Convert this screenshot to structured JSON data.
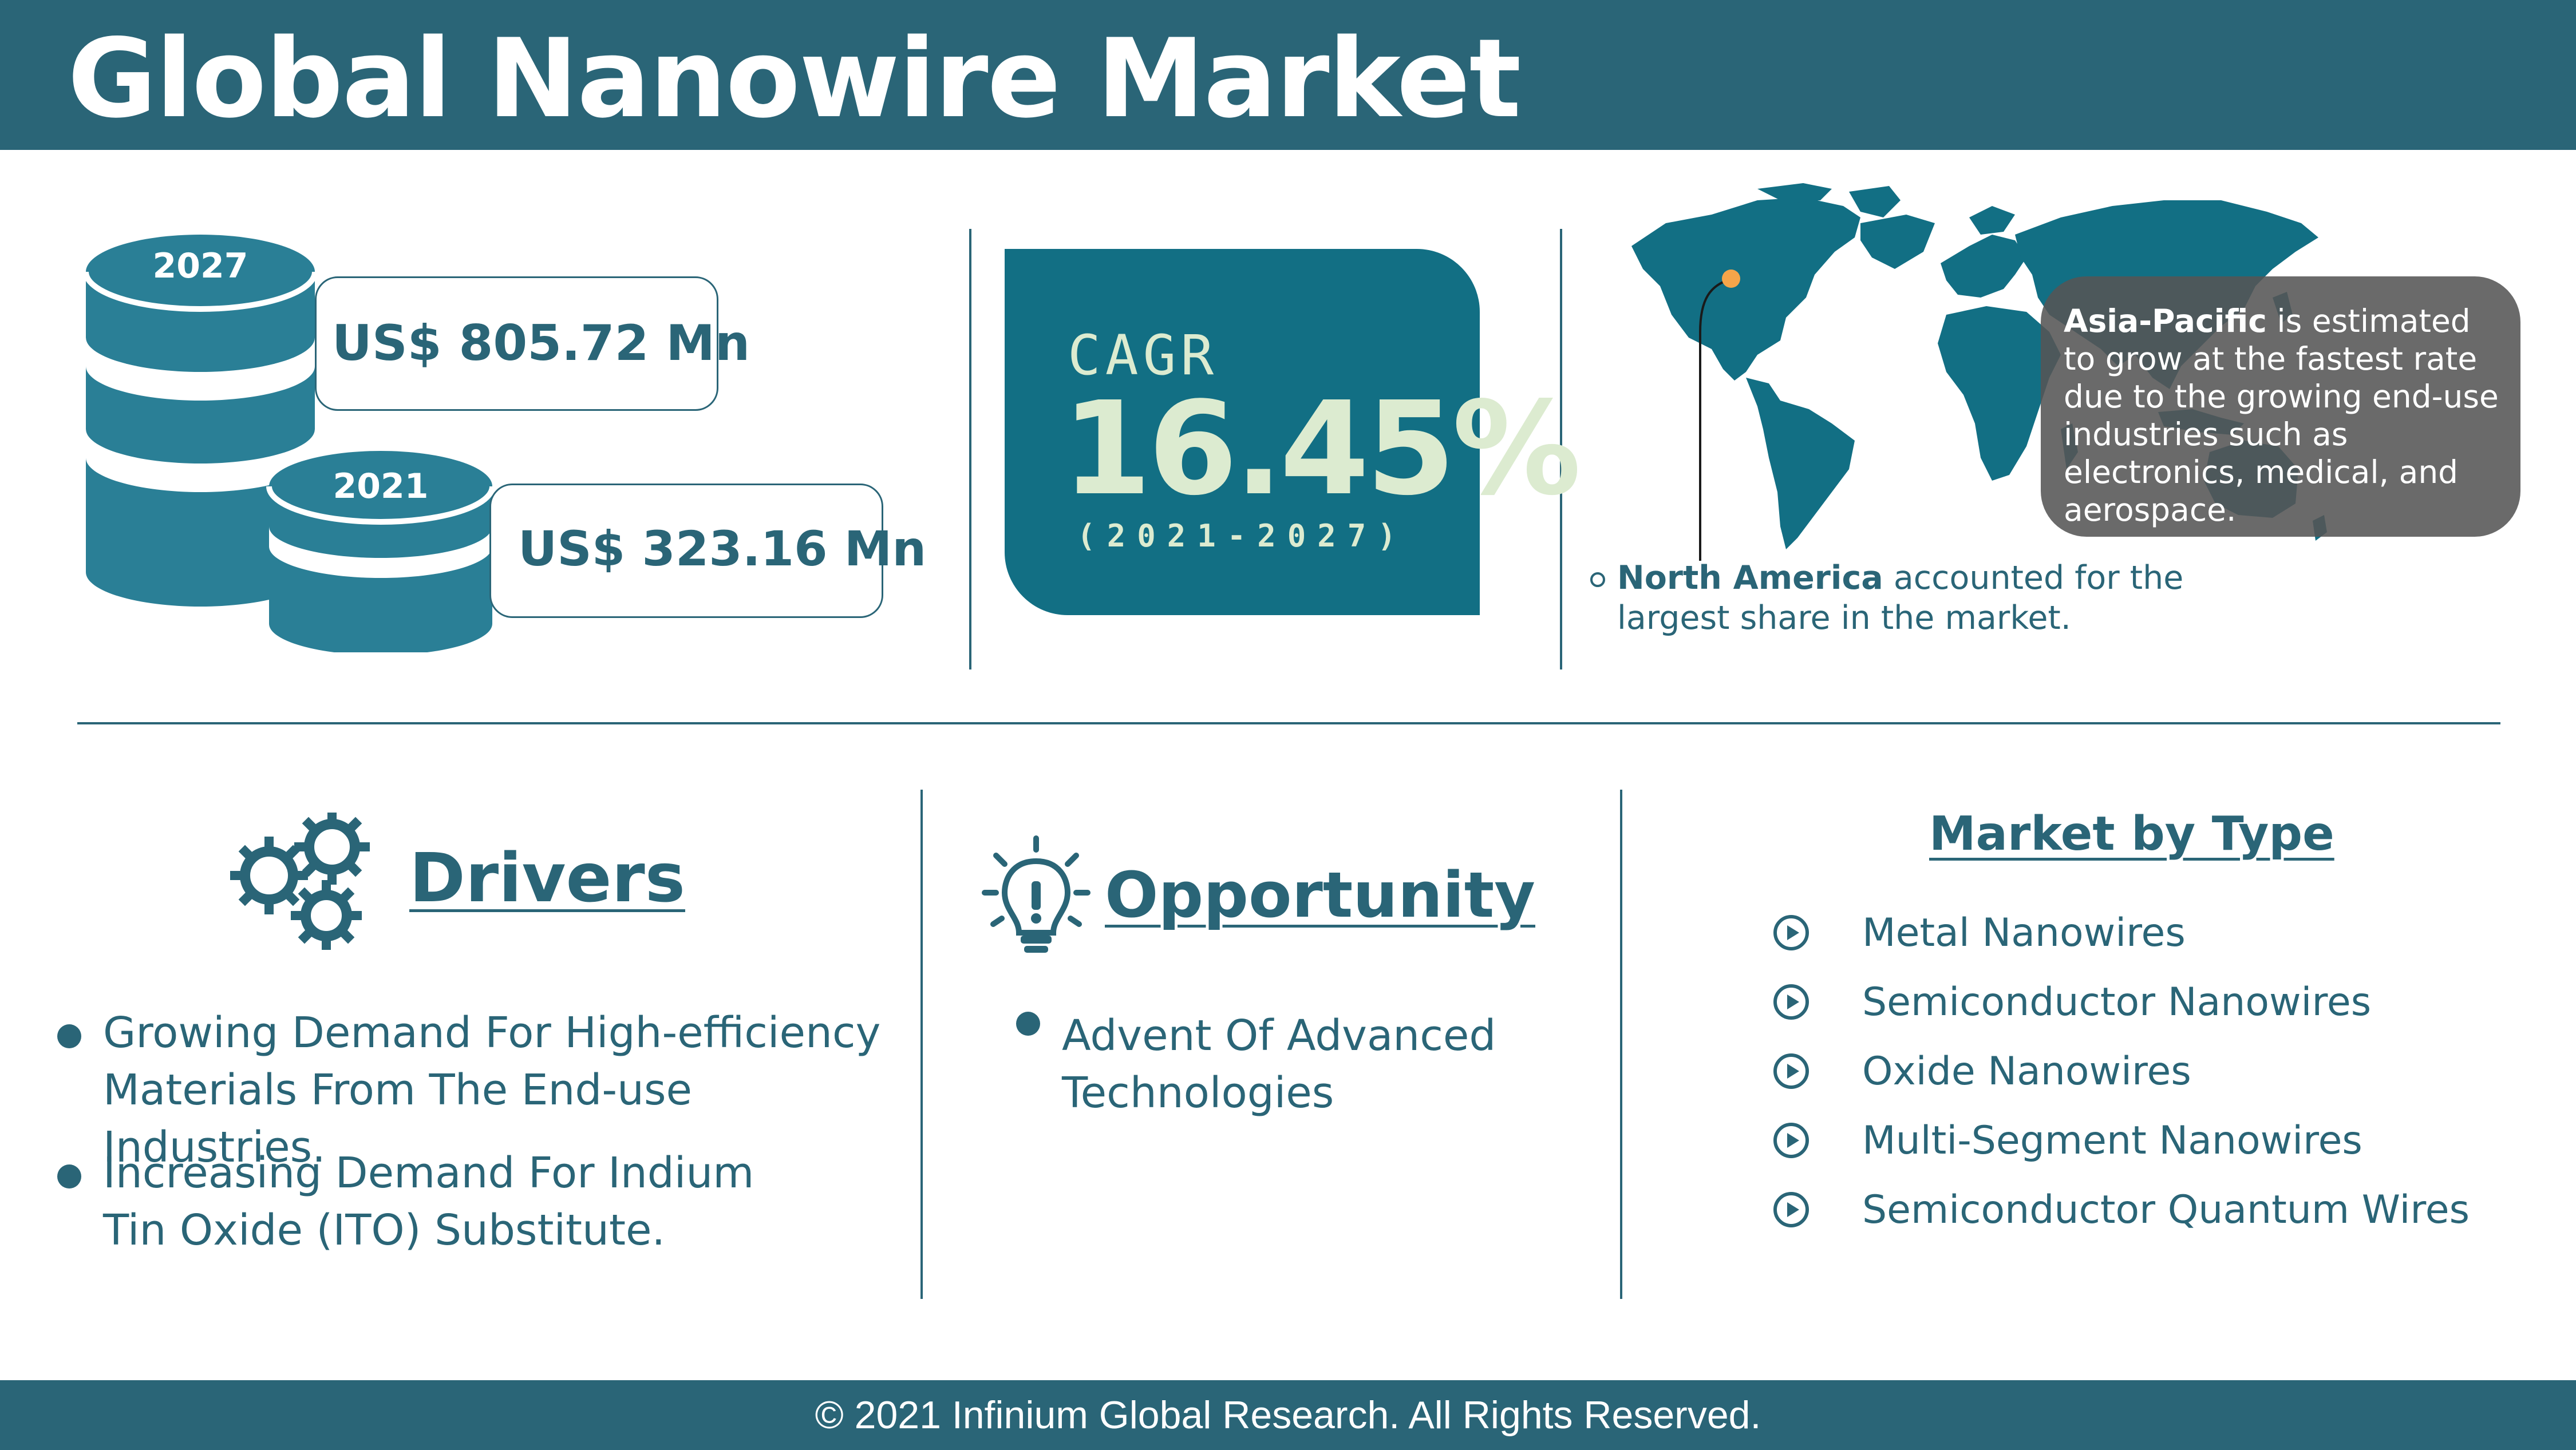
{
  "header": {
    "title": "Global Nanowire Market"
  },
  "market_size": {
    "future": {
      "year": "2027",
      "value": "US$ 805.72 Mn"
    },
    "current": {
      "year": "2021",
      "value": "US$ 323.16 Mn"
    }
  },
  "cagr": {
    "label": "CAGR",
    "value": "16.45%",
    "period": "(2021-2027)"
  },
  "regions": {
    "asia_pacific": {
      "name": "Asia-Pacific",
      "text": "is estimated to grow at the fastest rate due to the growing end-use industries such as electronics, medical, and aerospace."
    },
    "north_america": {
      "name": "North America",
      "text": "accounted for the largest share in the market."
    }
  },
  "drivers": {
    "title": "Drivers",
    "items": [
      "Growing Demand For High-efficiency Materials From The End-use Industries.",
      "Increasing Demand For Indium Tin Oxide (ITO) Substitute."
    ]
  },
  "opportunity": {
    "title": "Opportunity",
    "items": [
      "Advent Of Advanced Technologies"
    ]
  },
  "market_by_type": {
    "title": "Market by Type",
    "items": [
      "Metal Nanowires",
      "Semiconductor Nanowires",
      "Oxide Nanowires",
      "Multi-Segment Nanowires",
      "Semiconductor Quantum Wires"
    ]
  },
  "footer": {
    "copyright": "© 2021 Infinium Global Research. All Rights Reserved."
  },
  "colors": {
    "primary": "#2a6577",
    "cagr_bg": "#126f84",
    "cagr_text": "#dcebd0",
    "bubble": "#555555",
    "marker": "#f5a54a"
  }
}
